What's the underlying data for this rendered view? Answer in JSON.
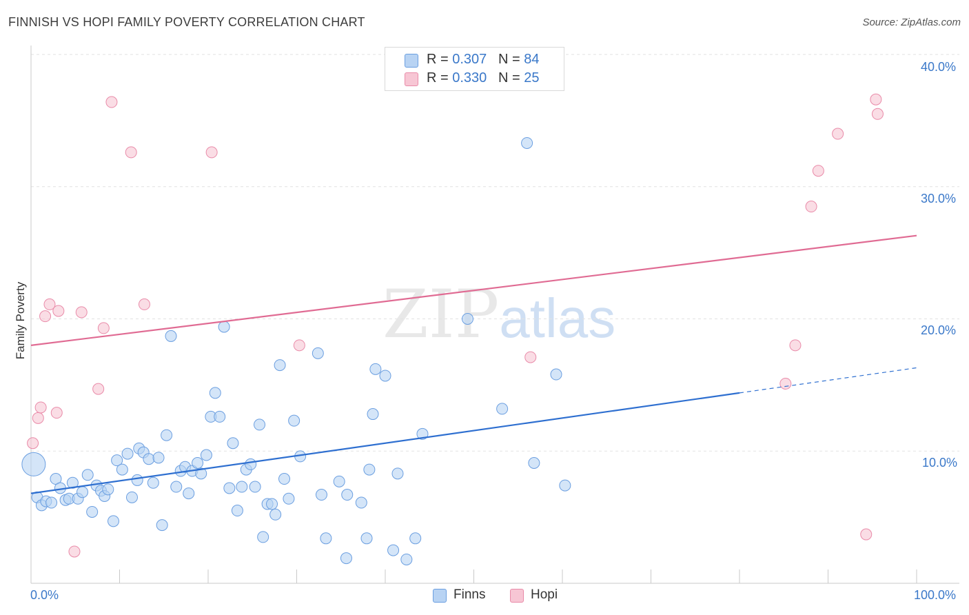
{
  "title": "FINNISH VS HOPI FAMILY POVERTY CORRELATION CHART",
  "source": "Source: ZipAtlas.com",
  "watermark": {
    "zip": "ZIP",
    "atlas": "atlas"
  },
  "colors": {
    "finns_fill": "#b8d3f3",
    "finns_stroke": "#6a9ee0",
    "finns_line": "#2e6fd0",
    "hopi_fill": "#f7c6d4",
    "hopi_stroke": "#e98aa8",
    "hopi_line": "#e06b93",
    "axis_text": "#3a78c9",
    "grid": "#e2e2e2"
  },
  "legend_top": [
    {
      "series": "Finns",
      "r_label": "R = ",
      "r_value": "0.307",
      "n_label": "N = ",
      "n_value": "84"
    },
    {
      "series": "Hopi",
      "r_label": "R = ",
      "r_value": "0.330",
      "n_label": "N = ",
      "n_value": "25"
    }
  ],
  "legend_bottom": [
    {
      "label": "Finns"
    },
    {
      "label": "Hopi"
    }
  ],
  "x_axis": {
    "min_label": "0.0%",
    "max_label": "100.0%"
  },
  "y_axis_label": "Family Poverty",
  "y_ticks": [
    "10.0%",
    "20.0%",
    "30.0%",
    "40.0%"
  ],
  "chart_data": {
    "type": "scatter",
    "title": "FINNISH VS HOPI FAMILY POVERTY CORRELATION CHART",
    "xlabel": "",
    "ylabel": "Family Poverty",
    "xlim": [
      0,
      100
    ],
    "ylim": [
      0,
      40
    ],
    "y_ticks": [
      10,
      20,
      30,
      40
    ],
    "grid": true,
    "legend_placement": "top-center",
    "series": [
      {
        "name": "Finns",
        "r": 0.307,
        "n": 84,
        "trend": {
          "x": [
            0,
            80
          ],
          "y": [
            6.8,
            14.4
          ],
          "dashed_extension_to": [
            100,
            16.3
          ]
        },
        "points": [
          [
            0.3,
            9.0,
            "big"
          ],
          [
            0.7,
            6.5
          ],
          [
            1.2,
            5.9
          ],
          [
            1.7,
            6.2
          ],
          [
            2.3,
            6.1
          ],
          [
            2.8,
            7.9
          ],
          [
            3.3,
            7.2
          ],
          [
            3.9,
            6.3
          ],
          [
            4.3,
            6.4
          ],
          [
            4.7,
            7.6
          ],
          [
            5.3,
            6.4
          ],
          [
            5.8,
            6.9
          ],
          [
            6.4,
            8.2
          ],
          [
            6.9,
            5.4
          ],
          [
            7.4,
            7.4
          ],
          [
            7.9,
            7.0
          ],
          [
            8.3,
            6.6
          ],
          [
            8.7,
            7.1
          ],
          [
            9.3,
            4.7
          ],
          [
            9.7,
            9.3
          ],
          [
            10.3,
            8.6
          ],
          [
            10.9,
            9.8
          ],
          [
            11.4,
            6.5
          ],
          [
            12.0,
            7.8
          ],
          [
            12.2,
            10.2
          ],
          [
            12.7,
            9.9
          ],
          [
            13.3,
            9.4
          ],
          [
            13.8,
            7.6
          ],
          [
            14.4,
            9.5
          ],
          [
            14.8,
            4.4
          ],
          [
            15.3,
            11.2
          ],
          [
            15.8,
            18.7
          ],
          [
            16.4,
            7.3
          ],
          [
            16.9,
            8.5
          ],
          [
            17.4,
            8.8
          ],
          [
            17.8,
            6.8
          ],
          [
            18.2,
            8.5
          ],
          [
            18.8,
            9.1
          ],
          [
            19.2,
            8.3
          ],
          [
            19.8,
            9.7
          ],
          [
            20.3,
            12.6
          ],
          [
            20.8,
            14.4
          ],
          [
            21.3,
            12.6
          ],
          [
            21.8,
            19.4
          ],
          [
            22.4,
            7.2
          ],
          [
            22.8,
            10.6
          ],
          [
            23.3,
            5.5
          ],
          [
            23.8,
            7.3
          ],
          [
            24.3,
            8.6
          ],
          [
            24.8,
            9.0
          ],
          [
            25.3,
            7.3
          ],
          [
            25.8,
            12.0
          ],
          [
            26.2,
            3.5
          ],
          [
            26.7,
            6.0
          ],
          [
            27.2,
            6.0
          ],
          [
            27.6,
            5.2
          ],
          [
            28.1,
            16.5
          ],
          [
            28.6,
            7.9
          ],
          [
            29.1,
            6.4
          ],
          [
            29.7,
            12.3
          ],
          [
            30.4,
            9.6
          ],
          [
            32.4,
            17.4
          ],
          [
            32.8,
            6.7
          ],
          [
            33.3,
            3.4
          ],
          [
            34.8,
            7.7
          ],
          [
            35.6,
            1.9
          ],
          [
            35.7,
            6.7
          ],
          [
            37.3,
            6.1
          ],
          [
            37.9,
            3.4
          ],
          [
            38.2,
            8.6
          ],
          [
            38.6,
            12.8
          ],
          [
            38.9,
            16.2
          ],
          [
            40.0,
            15.7
          ],
          [
            40.9,
            2.5
          ],
          [
            41.4,
            8.3
          ],
          [
            42.4,
            1.8
          ],
          [
            43.4,
            3.4
          ],
          [
            44.2,
            11.3
          ],
          [
            49.3,
            20.0
          ],
          [
            53.2,
            13.2
          ],
          [
            56.0,
            33.3
          ],
          [
            56.8,
            9.1
          ],
          [
            59.3,
            15.8
          ],
          [
            60.3,
            7.4
          ]
        ]
      },
      {
        "name": "Hopi",
        "r": 0.33,
        "n": 25,
        "trend": {
          "x": [
            0,
            100
          ],
          "y": [
            18.0,
            26.3
          ]
        },
        "points": [
          [
            0.2,
            10.6
          ],
          [
            0.8,
            12.5
          ],
          [
            1.1,
            13.3
          ],
          [
            1.6,
            20.2
          ],
          [
            2.1,
            21.1
          ],
          [
            2.9,
            12.9
          ],
          [
            3.1,
            20.6
          ],
          [
            4.9,
            2.4
          ],
          [
            5.7,
            20.5
          ],
          [
            7.6,
            14.7
          ],
          [
            8.2,
            19.3
          ],
          [
            9.1,
            36.4
          ],
          [
            11.3,
            32.6
          ],
          [
            12.8,
            21.1
          ],
          [
            20.4,
            32.6
          ],
          [
            30.3,
            18.0
          ],
          [
            56.4,
            17.1
          ],
          [
            85.2,
            15.1
          ],
          [
            86.3,
            18.0
          ],
          [
            88.1,
            28.5
          ],
          [
            88.9,
            31.2
          ],
          [
            91.1,
            34.0
          ],
          [
            94.3,
            3.7
          ],
          [
            95.4,
            36.6
          ],
          [
            95.6,
            35.5
          ]
        ]
      }
    ]
  }
}
